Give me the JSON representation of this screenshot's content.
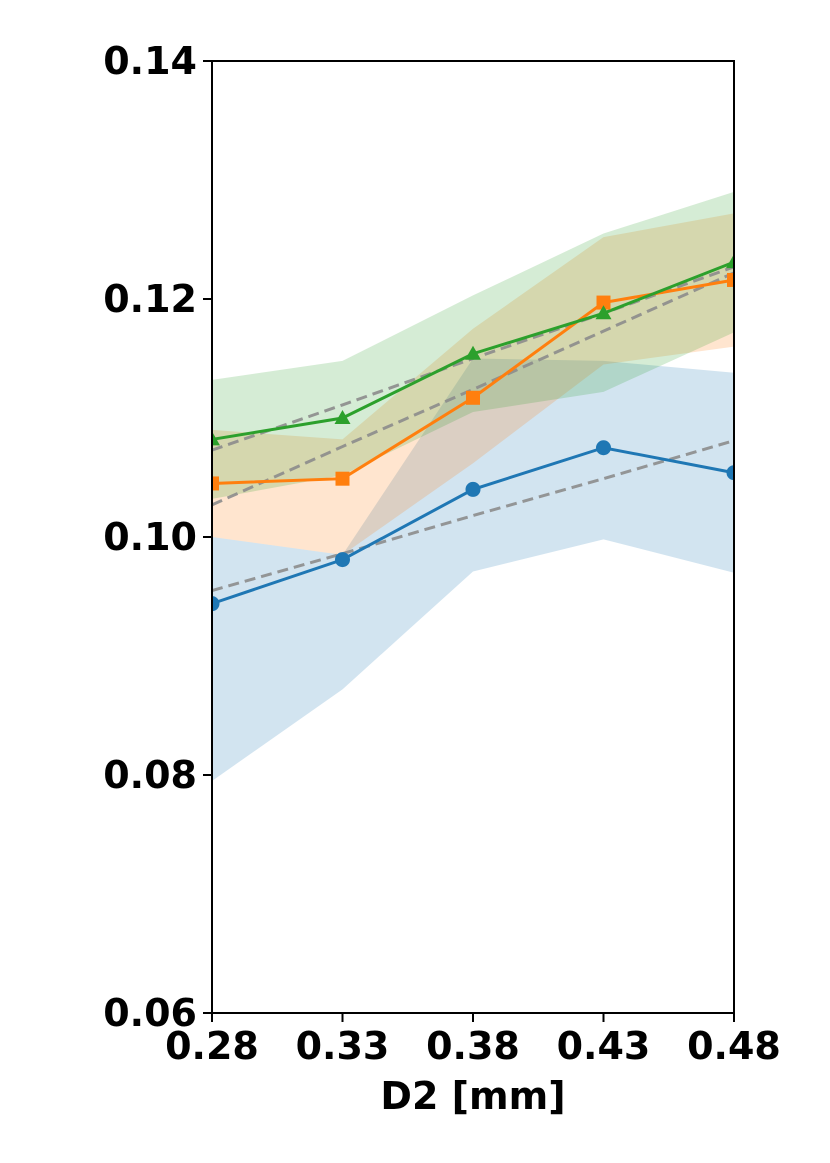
{
  "chart_data": {
    "type": "line",
    "xlabel": "D2 [mm]",
    "ylabel": "",
    "x": [
      0.28,
      0.33,
      0.38,
      0.43,
      0.48
    ],
    "x_tick_labels": [
      "0.28",
      "0.33",
      "0.38",
      "0.43",
      "0.48"
    ],
    "y_tick_values": [
      0.06,
      0.08,
      0.1,
      0.12,
      0.14
    ],
    "y_tick_labels": [
      "0.06",
      "0.08",
      "0.10",
      "0.12",
      "0.14"
    ],
    "xlim": [
      0.28,
      0.48
    ],
    "ylim": [
      0.06,
      0.14
    ],
    "grid": false,
    "legend": "none",
    "series": [
      {
        "color": "#1f77b4",
        "marker": "circle",
        "values": [
          0.0944,
          0.0981,
          0.104,
          0.1075,
          0.1054
        ],
        "band_upper": [
          0.1,
          0.0985,
          0.115,
          0.1148,
          0.1138
        ],
        "band_lower": [
          0.0795,
          0.0872,
          0.0971,
          0.0998,
          0.097
        ],
        "fit": [
          0.0955,
          0.0986,
          0.1018,
          0.1049,
          0.1081
        ]
      },
      {
        "color": "#ff7f0e",
        "marker": "square",
        "values": [
          0.1045,
          0.1049,
          0.1117,
          0.1197,
          0.1216
        ],
        "band_upper": [
          0.109,
          0.1082,
          0.1175,
          0.1252,
          0.1272
        ],
        "band_lower": [
          0.1,
          0.0985,
          0.1062,
          0.1145,
          0.116
        ],
        "fit": [
          0.1027,
          0.1076,
          0.1124,
          0.1173,
          0.1222
        ]
      },
      {
        "color": "#2ca02c",
        "marker": "triangle",
        "values": [
          0.1082,
          0.11,
          0.1154,
          0.1188,
          0.1231
        ],
        "band_upper": [
          0.1132,
          0.1148,
          0.1203,
          0.1255,
          0.129
        ],
        "band_lower": [
          0.1032,
          0.1052,
          0.1105,
          0.1122,
          0.1172
        ],
        "fit": [
          0.1073,
          0.1111,
          0.115,
          0.1188,
          0.1227
        ]
      }
    ]
  }
}
